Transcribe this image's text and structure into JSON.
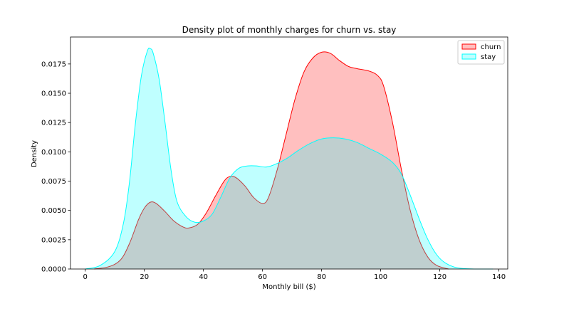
{
  "chart_data": {
    "type": "area",
    "title": "Density plot of monthly charges for churn vs. stay",
    "xlabel": "Monthly bill ($)",
    "ylabel": "Density",
    "xlim": [
      -5,
      143
    ],
    "ylim": [
      0,
      0.0198
    ],
    "xticks": [
      0,
      20,
      40,
      60,
      80,
      100,
      120,
      140
    ],
    "yticks": [
      0.0,
      0.0025,
      0.005,
      0.0075,
      0.01,
      0.0125,
      0.015,
      0.0175
    ],
    "ytick_labels": [
      "0.0000",
      "0.0025",
      "0.0050",
      "0.0075",
      "0.0100",
      "0.0125",
      "0.0150",
      "0.0175"
    ],
    "grid": false,
    "legend_position": "top-right",
    "series": [
      {
        "name": "churn",
        "line_color": "#ff0000",
        "fill_color": "#ff0000",
        "fill_opacity": 0.25,
        "points": [
          [
            3,
            0
          ],
          [
            8,
            0.0002
          ],
          [
            12,
            0.0008
          ],
          [
            15,
            0.0022
          ],
          [
            18,
            0.0042
          ],
          [
            20,
            0.0052
          ],
          [
            22,
            0.0057
          ],
          [
            24,
            0.0056
          ],
          [
            27,
            0.0049
          ],
          [
            30,
            0.0041
          ],
          [
            33,
            0.0036
          ],
          [
            35,
            0.0035
          ],
          [
            38,
            0.0038
          ],
          [
            41,
            0.0048
          ],
          [
            44,
            0.0062
          ],
          [
            47,
            0.0075
          ],
          [
            49,
            0.0079
          ],
          [
            51,
            0.0078
          ],
          [
            54,
            0.0071
          ],
          [
            57,
            0.0061
          ],
          [
            60,
            0.0056
          ],
          [
            62,
            0.0061
          ],
          [
            65,
            0.0085
          ],
          [
            68,
            0.0115
          ],
          [
            71,
            0.0145
          ],
          [
            74,
            0.0168
          ],
          [
            77,
            0.018
          ],
          [
            80,
            0.0185
          ],
          [
            83,
            0.0184
          ],
          [
            86,
            0.0178
          ],
          [
            89,
            0.0173
          ],
          [
            92,
            0.0171
          ],
          [
            96,
            0.0169
          ],
          [
            99,
            0.0165
          ],
          [
            101,
            0.0156
          ],
          [
            104,
            0.0125
          ],
          [
            107,
            0.0085
          ],
          [
            110,
            0.005
          ],
          [
            113,
            0.0025
          ],
          [
            116,
            0.001
          ],
          [
            119,
            0.0003
          ],
          [
            123,
            0
          ]
        ]
      },
      {
        "name": "stay",
        "line_color": "#00ffff",
        "fill_color": "#00ffff",
        "fill_opacity": 0.25,
        "points": [
          [
            0,
            0
          ],
          [
            5,
            0.0003
          ],
          [
            10,
            0.0015
          ],
          [
            13,
            0.004
          ],
          [
            15,
            0.0075
          ],
          [
            17,
            0.0125
          ],
          [
            19,
            0.0165
          ],
          [
            21,
            0.0186
          ],
          [
            22,
            0.0188
          ],
          [
            23,
            0.0184
          ],
          [
            25,
            0.0162
          ],
          [
            27,
            0.0125
          ],
          [
            29,
            0.0085
          ],
          [
            31,
            0.0058
          ],
          [
            34,
            0.0045
          ],
          [
            37,
            0.004
          ],
          [
            40,
            0.0041
          ],
          [
            43,
            0.0047
          ],
          [
            46,
            0.0062
          ],
          [
            49,
            0.0078
          ],
          [
            52,
            0.0086
          ],
          [
            55,
            0.0088
          ],
          [
            58,
            0.0088
          ],
          [
            61,
            0.0087
          ],
          [
            64,
            0.0089
          ],
          [
            68,
            0.0094
          ],
          [
            72,
            0.0101
          ],
          [
            76,
            0.0107
          ],
          [
            80,
            0.0111
          ],
          [
            84,
            0.0112
          ],
          [
            88,
            0.0111
          ],
          [
            92,
            0.0108
          ],
          [
            96,
            0.0103
          ],
          [
            100,
            0.0098
          ],
          [
            104,
            0.0091
          ],
          [
            107,
            0.0081
          ],
          [
            110,
            0.0063
          ],
          [
            113,
            0.0043
          ],
          [
            116,
            0.0025
          ],
          [
            119,
            0.0012
          ],
          [
            122,
            0.0005
          ],
          [
            126,
            0.0001
          ],
          [
            132,
            0
          ],
          [
            138,
            0
          ]
        ]
      }
    ]
  }
}
